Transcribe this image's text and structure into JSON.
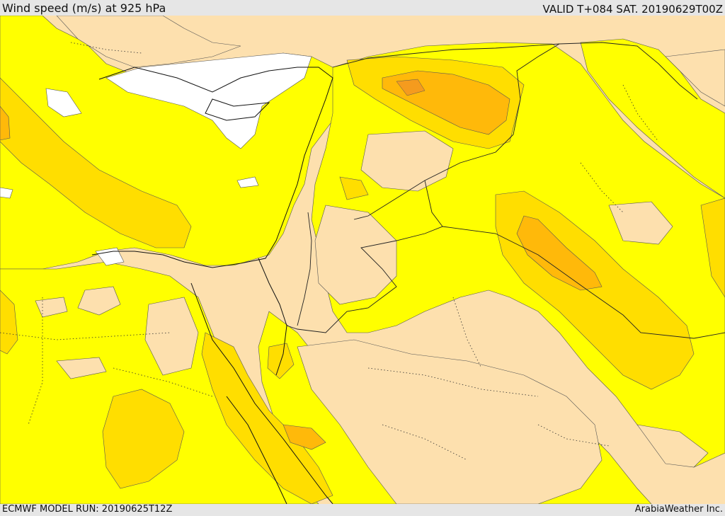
{
  "header": {
    "title": "Wind speed (m/s) at 925 hPa",
    "valid": "VALID T+084 SAT. 20190629T00Z"
  },
  "footer": {
    "model_run": "ECMWF MODEL RUN: 20190625T12Z",
    "credit": "ArabiaWeather Inc."
  },
  "colors": {
    "calm": "#ffffff",
    "light": "#fde0ae",
    "moderate": "#ffff00",
    "fresh": "#ffde00",
    "strong": "#ffb90a",
    "very_strong": "#f59b1e",
    "frame": "#e6e6e6"
  }
}
